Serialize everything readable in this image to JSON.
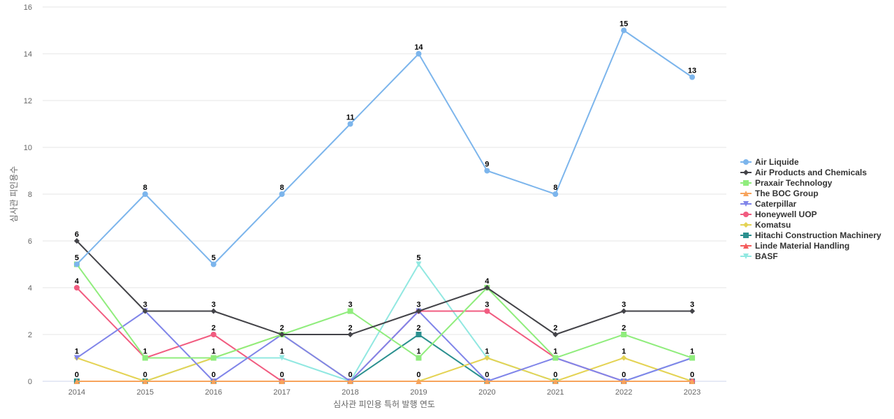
{
  "chart_data": {
    "type": "line",
    "x": [
      "2014",
      "2015",
      "2016",
      "2017",
      "2018",
      "2019",
      "2020",
      "2021",
      "2022",
      "2023"
    ],
    "xlabel": "심사관 피인용 특허 발행 연도",
    "ylabel": "심사관 피인용수",
    "ylim": [
      0,
      16
    ],
    "yticks": [
      0,
      2,
      4,
      6,
      8,
      10,
      12,
      14,
      16
    ],
    "grid": true,
    "legend_position": "right",
    "series": [
      {
        "name": "Air Liquide",
        "color": "#7cb5ec",
        "marker": "circle",
        "values": [
          5,
          8,
          5,
          8,
          11,
          14,
          9,
          8,
          15,
          13
        ]
      },
      {
        "name": "Air Products and Chemicals",
        "color": "#434348",
        "marker": "diamond",
        "values": [
          6,
          3,
          3,
          2,
          2,
          3,
          4,
          2,
          3,
          3
        ]
      },
      {
        "name": "Praxair Technology",
        "color": "#90ed7d",
        "marker": "square",
        "values": [
          5,
          1,
          1,
          2,
          3,
          1,
          4,
          1,
          2,
          1
        ]
      },
      {
        "name": "The BOC Group",
        "color": "#f7a35c",
        "marker": "triangle",
        "values": [
          0,
          0,
          0,
          0,
          0,
          0,
          0,
          0,
          0,
          0
        ]
      },
      {
        "name": "Caterpillar",
        "color": "#8085e9",
        "marker": "triangle-down",
        "values": [
          1,
          3,
          0,
          2,
          0,
          3,
          0,
          1,
          0,
          1
        ]
      },
      {
        "name": "Honeywell UOP",
        "color": "#f15c80",
        "marker": "circle",
        "values": [
          4,
          1,
          2,
          0,
          0,
          3,
          3,
          1,
          0,
          0
        ]
      },
      {
        "name": "Komatsu",
        "color": "#e4d354",
        "marker": "diamond",
        "values": [
          1,
          0,
          1,
          2,
          0,
          0,
          1,
          0,
          1,
          0
        ]
      },
      {
        "name": "Hitachi Construction Machinery",
        "color": "#2b908f",
        "marker": "square",
        "values": [
          0,
          0,
          0,
          0,
          0,
          2,
          0,
          0,
          0,
          0
        ]
      },
      {
        "name": "Linde Material Handling",
        "color": "#f45b5b",
        "marker": "triangle",
        "values": [
          0,
          0,
          0,
          0,
          0,
          0,
          0,
          0,
          0,
          0
        ]
      },
      {
        "name": "BASF",
        "color": "#91e8e1",
        "marker": "triangle-down",
        "values": [
          0,
          0,
          1,
          1,
          0,
          5,
          1,
          0,
          0,
          1
        ]
      }
    ],
    "data_labels": [
      {
        "x": "2014",
        "values": [
          "6",
          "5",
          "4",
          "1",
          "0"
        ]
      },
      {
        "x": "2015",
        "values": [
          "8",
          "3",
          "1",
          "0"
        ]
      },
      {
        "x": "2016",
        "values": [
          "5",
          "3",
          "2",
          "1",
          "0"
        ]
      },
      {
        "x": "2017",
        "values": [
          "8",
          "2",
          "1",
          "0"
        ]
      },
      {
        "x": "2018",
        "values": [
          "11",
          "3",
          "2",
          "0"
        ]
      },
      {
        "x": "2019",
        "values": [
          "14",
          "5",
          "3",
          "2",
          "1",
          "0"
        ]
      },
      {
        "x": "2020",
        "values": [
          "9",
          "4",
          "3",
          "1",
          "0"
        ]
      },
      {
        "x": "2021",
        "values": [
          "8",
          "2",
          "1",
          "0"
        ]
      },
      {
        "x": "2022",
        "values": [
          "15",
          "3",
          "2",
          "1",
          "0"
        ]
      },
      {
        "x": "2023",
        "values": [
          "13",
          "3",
          "1",
          "0"
        ]
      }
    ]
  }
}
